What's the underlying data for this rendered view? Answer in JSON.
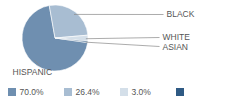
{
  "chart_data": {
    "type": "pie",
    "categories": [
      "HISPANIC",
      "BLACK",
      "WHITE",
      "ASIAN"
    ],
    "values": [
      70.0,
      26.4,
      3.0,
      0.6
    ],
    "value_labels": [
      "70.0%",
      "26.4%",
      "3.0%",
      null
    ],
    "colors": [
      "#6f8fb0",
      "#a8bdd2",
      "#d4dfe9",
      "#2f5a84"
    ],
    "legend": "bottom"
  }
}
